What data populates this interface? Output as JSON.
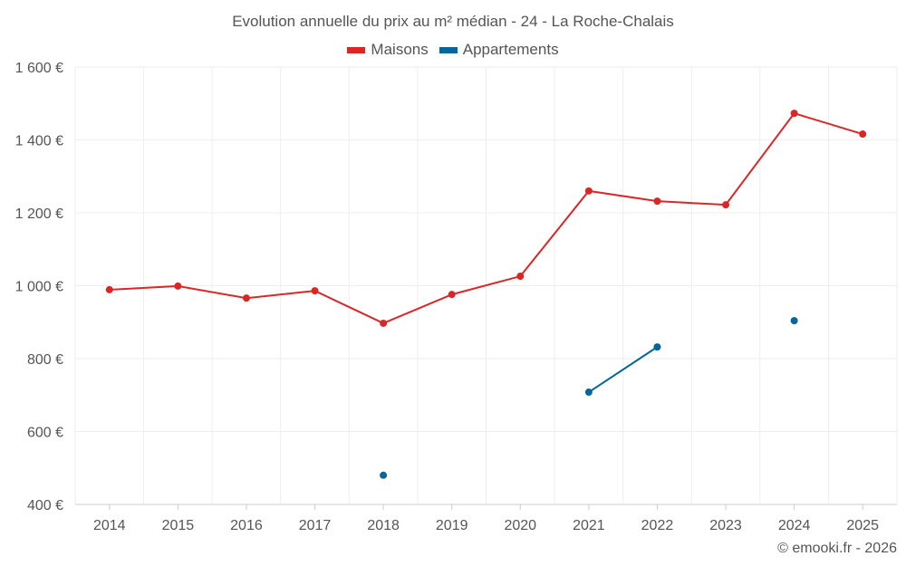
{
  "chart_data": {
    "type": "line",
    "title": "Evolution annuelle du prix au m² médian - 24 - La Roche-Chalais",
    "xlabel": "",
    "ylabel": "",
    "categories": [
      "2014",
      "2015",
      "2016",
      "2017",
      "2018",
      "2019",
      "2020",
      "2021",
      "2022",
      "2023",
      "2024",
      "2025"
    ],
    "ylim": [
      400,
      1600
    ],
    "yticks": [
      400,
      600,
      800,
      1000,
      1200,
      1400,
      1600
    ],
    "ytick_labels": [
      "400 €",
      "600 €",
      "800 €",
      "1 000 €",
      "1 200 €",
      "1 400 €",
      "1 600 €"
    ],
    "grid": true,
    "legend_position": "top-center",
    "series": [
      {
        "name": "Maisons",
        "color": "#dc2626",
        "values": [
          989,
          999,
          966,
          986,
          897,
          976,
          1026,
          1260,
          1232,
          1222,
          1473,
          1416
        ]
      },
      {
        "name": "Appartements",
        "color": "#03669e",
        "values": [
          null,
          null,
          null,
          null,
          480,
          null,
          null,
          708,
          832,
          null,
          904,
          null
        ]
      }
    ]
  },
  "credit": "© emooki.fr - 2026"
}
